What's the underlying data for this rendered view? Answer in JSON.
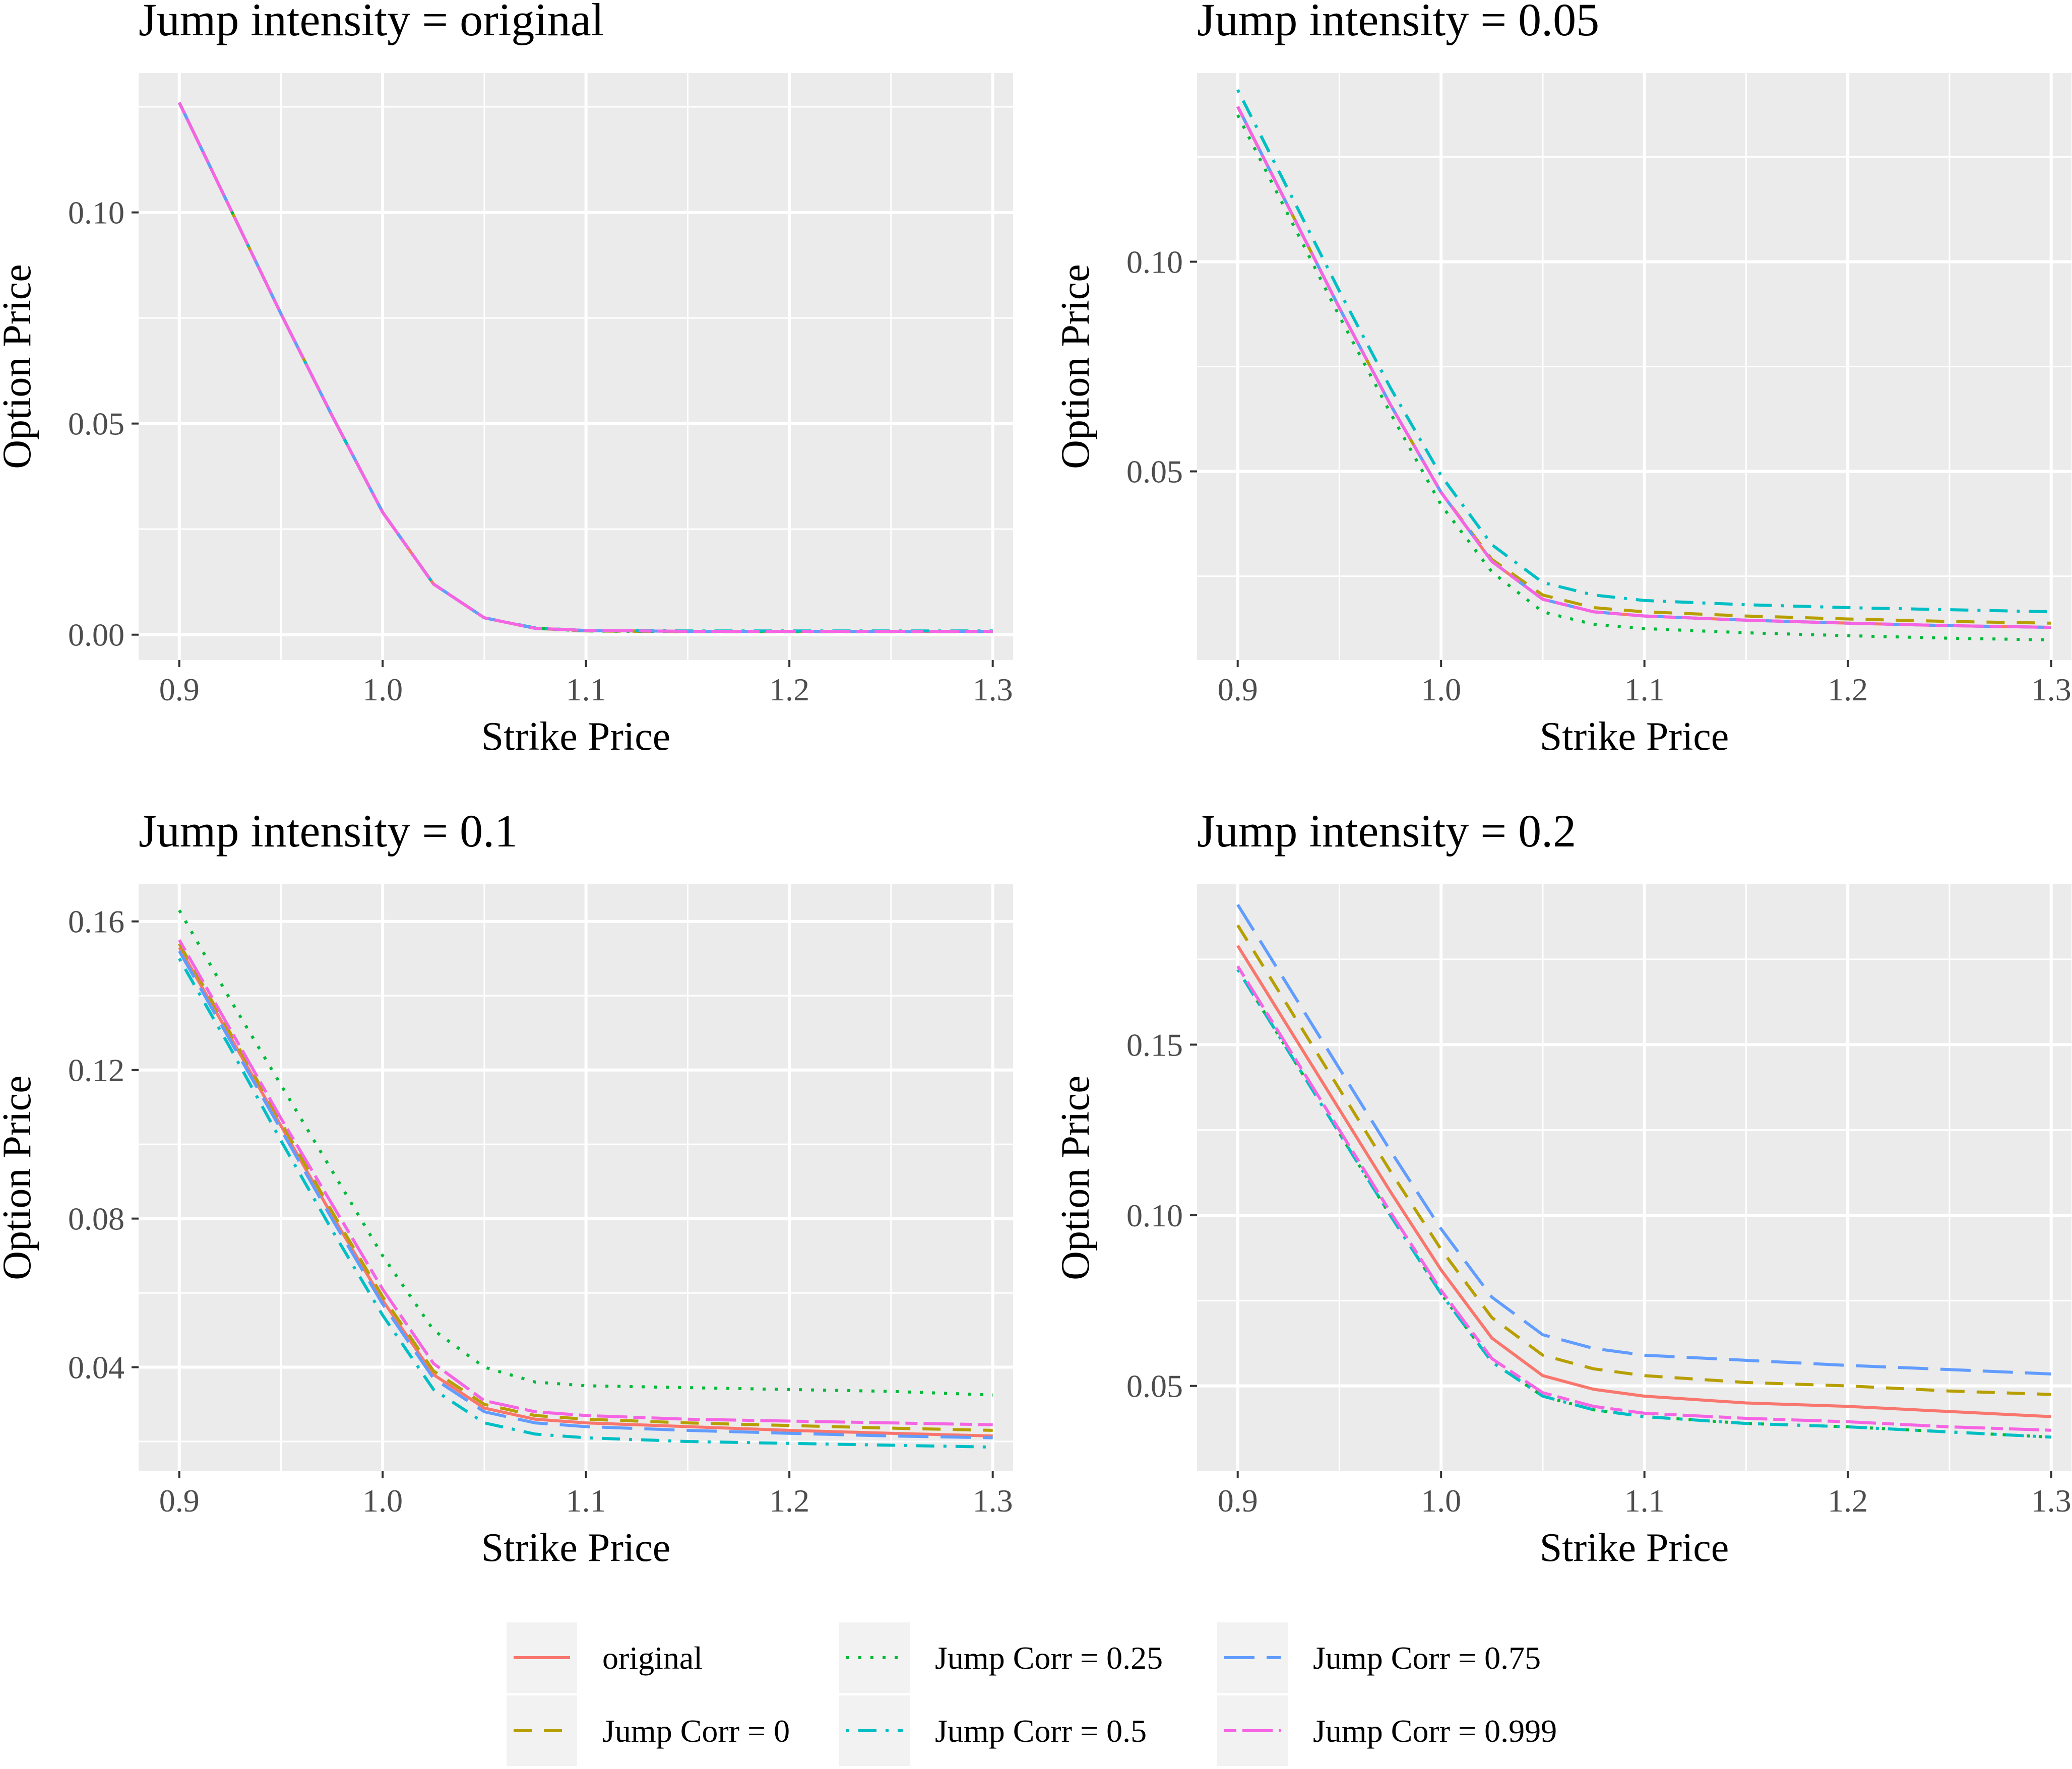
{
  "legend": {
    "entries": [
      {
        "label": "original",
        "color": "#F8766D",
        "dash": "solid"
      },
      {
        "label": "Jump Corr = 0",
        "color": "#B79F00",
        "dash": "dashed"
      },
      {
        "label": "Jump Corr = 0.25",
        "color": "#00BA38",
        "dash": "dotted"
      },
      {
        "label": "Jump Corr = 0.5",
        "color": "#00BFC4",
        "dash": "dotdash"
      },
      {
        "label": "Jump Corr = 0.75",
        "color": "#619CFF",
        "dash": "longdash"
      },
      {
        "label": "Jump Corr = 0.999",
        "color": "#F564E3",
        "dash": "twodash"
      }
    ]
  },
  "chart_data": [
    {
      "type": "line",
      "title": "Jump intensity = original",
      "xlabel": "Strike Price",
      "ylabel": "Option Price",
      "xlim": [
        0.88,
        1.31
      ],
      "ylim": [
        -0.006,
        0.133
      ],
      "x_ticks": [
        0.9,
        1.0,
        1.1,
        1.2,
        1.3
      ],
      "x_tick_labels": [
        "0.9",
        "1.0",
        "1.1",
        "1.2",
        "1.3"
      ],
      "y_ticks": [
        0.0,
        0.05,
        0.1
      ],
      "y_tick_labels": [
        "0.00",
        "0.05",
        "0.10"
      ],
      "x": [
        0.9,
        0.925,
        0.95,
        0.975,
        1.0,
        1.025,
        1.05,
        1.075,
        1.1,
        1.15,
        1.2,
        1.25,
        1.3
      ],
      "series": [
        {
          "name": "original",
          "values": [
            0.126,
            0.101,
            0.076,
            0.052,
            0.029,
            0.012,
            0.004,
            0.0015,
            0.001,
            0.0008,
            0.0008,
            0.0008,
            0.0008
          ]
        },
        {
          "name": "Jump Corr = 0",
          "values": [
            0.126,
            0.101,
            0.076,
            0.052,
            0.029,
            0.012,
            0.004,
            0.0015,
            0.0009,
            0.0007,
            0.0007,
            0.0007,
            0.0007
          ]
        },
        {
          "name": "Jump Corr = 0.25",
          "values": [
            0.126,
            0.101,
            0.076,
            0.052,
            0.029,
            0.012,
            0.004,
            0.0015,
            0.0009,
            0.0007,
            0.0007,
            0.0007,
            0.0007
          ]
        },
        {
          "name": "Jump Corr = 0.5",
          "values": [
            0.126,
            0.101,
            0.076,
            0.052,
            0.029,
            0.012,
            0.004,
            0.0016,
            0.001,
            0.0009,
            0.0009,
            0.0009,
            0.0009
          ]
        },
        {
          "name": "Jump Corr = 0.75",
          "values": [
            0.126,
            0.101,
            0.076,
            0.052,
            0.029,
            0.012,
            0.004,
            0.0015,
            0.001,
            0.0008,
            0.0008,
            0.0008,
            0.0008
          ]
        },
        {
          "name": "Jump Corr = 0.999",
          "values": [
            0.126,
            0.101,
            0.076,
            0.052,
            0.029,
            0.012,
            0.004,
            0.0015,
            0.001,
            0.0008,
            0.0008,
            0.0008,
            0.0008
          ]
        }
      ]
    },
    {
      "type": "line",
      "title": "Jump intensity = 0.05",
      "xlabel": "Strike Price",
      "ylabel": "Option Price",
      "xlim": [
        0.88,
        1.31
      ],
      "ylim": [
        0.005,
        0.145
      ],
      "x_ticks": [
        0.9,
        1.0,
        1.1,
        1.2,
        1.3
      ],
      "x_tick_labels": [
        "0.9",
        "1.0",
        "1.1",
        "1.2",
        "1.3"
      ],
      "y_ticks": [
        0.05,
        0.1
      ],
      "y_tick_labels": [
        "0.05",
        "0.10"
      ],
      "x": [
        0.9,
        0.925,
        0.95,
        0.975,
        1.0,
        1.025,
        1.05,
        1.075,
        1.1,
        1.15,
        1.2,
        1.25,
        1.3
      ],
      "series": [
        {
          "name": "original",
          "values": [
            0.137,
            0.113,
            0.089,
            0.066,
            0.045,
            0.0285,
            0.0195,
            0.0165,
            0.0155,
            0.0145,
            0.0138,
            0.0132,
            0.0128
          ]
        },
        {
          "name": "Jump Corr = 0",
          "values": [
            0.137,
            0.113,
            0.089,
            0.066,
            0.045,
            0.029,
            0.0205,
            0.0175,
            0.0165,
            0.0155,
            0.0148,
            0.0142,
            0.0138
          ]
        },
        {
          "name": "Jump Corr = 0.25",
          "values": [
            0.135,
            0.111,
            0.087,
            0.064,
            0.042,
            0.026,
            0.0165,
            0.0135,
            0.0125,
            0.0115,
            0.0108,
            0.0102,
            0.0098
          ]
        },
        {
          "name": "Jump Corr = 0.5",
          "values": [
            0.141,
            0.117,
            0.093,
            0.07,
            0.049,
            0.0325,
            0.0235,
            0.0205,
            0.0192,
            0.0182,
            0.0175,
            0.017,
            0.0165
          ]
        },
        {
          "name": "Jump Corr = 0.75",
          "values": [
            0.137,
            0.113,
            0.089,
            0.066,
            0.045,
            0.0285,
            0.0195,
            0.0165,
            0.0155,
            0.0145,
            0.0138,
            0.0132,
            0.0128
          ]
        },
        {
          "name": "Jump Corr = 0.999",
          "values": [
            0.137,
            0.113,
            0.089,
            0.066,
            0.045,
            0.0285,
            0.0195,
            0.0165,
            0.0155,
            0.0145,
            0.0138,
            0.0132,
            0.0128
          ]
        }
      ]
    },
    {
      "type": "line",
      "title": "Jump intensity = 0.1",
      "xlabel": "Strike Price",
      "ylabel": "Option Price",
      "xlim": [
        0.88,
        1.31
      ],
      "ylim": [
        0.012,
        0.17
      ],
      "x_ticks": [
        0.9,
        1.0,
        1.1,
        1.2,
        1.3
      ],
      "x_tick_labels": [
        "0.9",
        "1.0",
        "1.1",
        "1.2",
        "1.3"
      ],
      "y_ticks": [
        0.04,
        0.08,
        0.12,
        0.16
      ],
      "y_tick_labels": [
        "0.04",
        "0.08",
        "0.12",
        "0.16"
      ],
      "x": [
        0.9,
        0.925,
        0.95,
        0.975,
        1.0,
        1.025,
        1.05,
        1.075,
        1.1,
        1.15,
        1.2,
        1.25,
        1.3
      ],
      "series": [
        {
          "name": "original",
          "values": [
            0.153,
            0.129,
            0.105,
            0.081,
            0.058,
            0.038,
            0.029,
            0.026,
            0.025,
            0.024,
            0.023,
            0.0222,
            0.0215
          ]
        },
        {
          "name": "Jump Corr = 0",
          "values": [
            0.154,
            0.13,
            0.106,
            0.082,
            0.059,
            0.039,
            0.03,
            0.027,
            0.026,
            0.025,
            0.0243,
            0.0236,
            0.023
          ]
        },
        {
          "name": "Jump Corr = 0.25",
          "values": [
            0.163,
            0.139,
            0.116,
            0.093,
            0.07,
            0.05,
            0.04,
            0.036,
            0.035,
            0.0345,
            0.034,
            0.0335,
            0.0325
          ]
        },
        {
          "name": "Jump Corr = 0.5",
          "values": [
            0.15,
            0.126,
            0.101,
            0.077,
            0.054,
            0.034,
            0.025,
            0.022,
            0.021,
            0.02,
            0.0195,
            0.019,
            0.0185
          ]
        },
        {
          "name": "Jump Corr = 0.75",
          "values": [
            0.152,
            0.128,
            0.104,
            0.08,
            0.057,
            0.037,
            0.028,
            0.025,
            0.024,
            0.023,
            0.0222,
            0.0215,
            0.021
          ]
        },
        {
          "name": "Jump Corr = 0.999",
          "values": [
            0.155,
            0.131,
            0.107,
            0.084,
            0.061,
            0.041,
            0.031,
            0.028,
            0.027,
            0.026,
            0.0255,
            0.025,
            0.0245
          ]
        }
      ]
    },
    {
      "type": "line",
      "title": "Jump intensity = 0.2",
      "xlabel": "Strike Price",
      "ylabel": "Option Price",
      "xlim": [
        0.88,
        1.31
      ],
      "ylim": [
        0.025,
        0.197
      ],
      "x_ticks": [
        0.9,
        1.0,
        1.1,
        1.2,
        1.3
      ],
      "x_tick_labels": [
        "0.9",
        "1.0",
        "1.1",
        "1.2",
        "1.3"
      ],
      "y_ticks": [
        0.05,
        0.1,
        0.15
      ],
      "y_tick_labels": [
        "0.05",
        "0.10",
        "0.15"
      ],
      "x": [
        0.9,
        0.925,
        0.95,
        0.975,
        1.0,
        1.025,
        1.05,
        1.075,
        1.1,
        1.15,
        1.2,
        1.25,
        1.3
      ],
      "series": [
        {
          "name": "original",
          "values": [
            0.179,
            0.155,
            0.131,
            0.107,
            0.084,
            0.064,
            0.053,
            0.049,
            0.047,
            0.045,
            0.044,
            0.0425,
            0.041
          ]
        },
        {
          "name": "Jump Corr = 0",
          "values": [
            0.185,
            0.161,
            0.137,
            0.113,
            0.09,
            0.07,
            0.059,
            0.055,
            0.053,
            0.051,
            0.05,
            0.0485,
            0.0475
          ]
        },
        {
          "name": "Jump Corr = 0.25",
          "values": [
            0.172,
            0.148,
            0.124,
            0.1,
            0.077,
            0.057,
            0.047,
            0.043,
            0.041,
            0.039,
            0.038,
            0.0365,
            0.035
          ]
        },
        {
          "name": "Jump Corr = 0.5",
          "values": [
            0.172,
            0.148,
            0.124,
            0.1,
            0.077,
            0.057,
            0.047,
            0.043,
            0.041,
            0.039,
            0.038,
            0.0365,
            0.035
          ]
        },
        {
          "name": "Jump Corr = 0.75",
          "values": [
            0.191,
            0.167,
            0.143,
            0.119,
            0.096,
            0.076,
            0.065,
            0.061,
            0.059,
            0.0575,
            0.056,
            0.0548,
            0.0535
          ]
        },
        {
          "name": "Jump Corr = 0.999",
          "values": [
            0.173,
            0.149,
            0.125,
            0.101,
            0.078,
            0.058,
            0.048,
            0.044,
            0.042,
            0.0405,
            0.0395,
            0.038,
            0.037
          ]
        }
      ]
    }
  ]
}
